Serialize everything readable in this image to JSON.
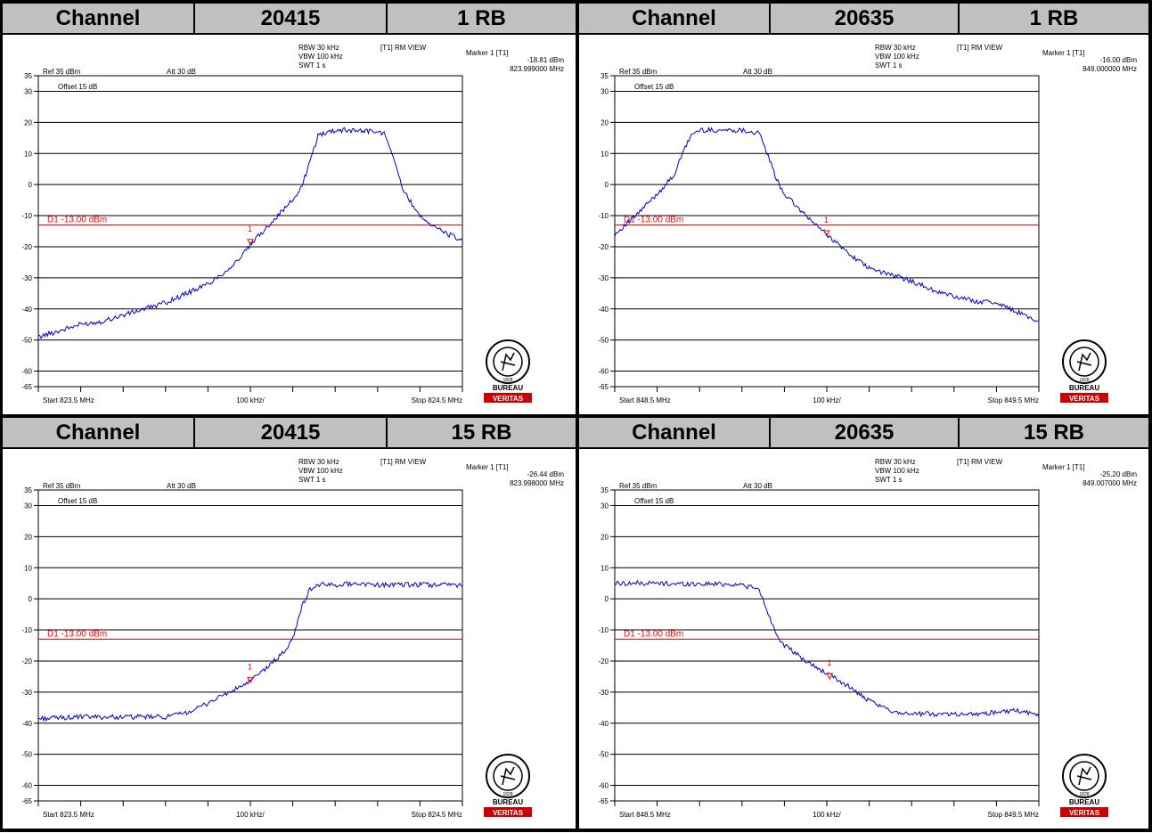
{
  "sections": [
    {
      "header": {
        "label": "Channel",
        "channel": "20415",
        "rb": "1 RB"
      },
      "chart_data": {
        "type": "line",
        "title": "",
        "ref_label": "Ref 35 dBm",
        "att_label": "Att 30 dB",
        "offset_label": "Offset 15 dB",
        "rbw": "RBW 30 kHz",
        "vbw": "VBW 100 kHz",
        "swt": "SWT 1 s",
        "mode": "[T1] RM VIEW",
        "marker_title": "Marker 1 [T1]",
        "marker_level": "-18.81 dBm",
        "marker_freq": "823.999000 MHz",
        "start_label": "Start 823.5 MHz",
        "span_label": "100 kHz/",
        "stop_label": "Stop 824.5 MHz",
        "limit_label": "D1 -13.00 dBm",
        "limit_value": -13,
        "x_range": [
          823.5,
          824.5
        ],
        "ylim": [
          -65,
          35
        ],
        "yticks": [
          35,
          30,
          20,
          10,
          0,
          -10,
          -20,
          -30,
          -40,
          -50,
          -60,
          -65
        ],
        "marker_x": 824.0,
        "marker_y": -18.81,
        "series": [
          {
            "x": [
              823.5,
              823.55,
              823.6,
              823.65,
              823.7,
              823.75,
              823.8,
              823.85,
              823.9,
              823.95,
              823.98,
              824.0,
              824.05,
              824.1,
              824.12,
              824.14,
              824.16,
              824.2,
              824.25,
              824.3,
              824.32,
              824.34,
              824.36,
              824.4,
              824.45,
              824.5
            ],
            "y": [
              -49,
              -47,
              -45,
              -44,
              -42,
              -40,
              -38,
              -35,
              -32,
              -27,
              -23,
              -19.5,
              -12,
              -5,
              -1,
              7,
              16,
              17.5,
              17.5,
              17,
              16,
              8,
              -2,
              -10,
              -15,
              -18
            ]
          }
        ]
      }
    },
    {
      "header": {
        "label": "Channel",
        "channel": "20635",
        "rb": "1 RB"
      },
      "chart_data": {
        "type": "line",
        "title": "",
        "ref_label": "Ref 35 dBm",
        "att_label": "Att 30 dB",
        "offset_label": "Offset 15 dB",
        "rbw": "RBW 30 kHz",
        "vbw": "VBW 100 kHz",
        "swt": "SWT 1 s",
        "mode": "[T1] RM VIEW",
        "marker_title": "Marker 1 [T1]",
        "marker_level": "-16.00 dBm",
        "marker_freq": "849.000000 MHz",
        "start_label": "Start 848.5 MHz",
        "span_label": "100 kHz/",
        "stop_label": "Stop 849.5 MHz",
        "limit_label": "D1 -13.00 dBm",
        "limit_value": -13,
        "x_range": [
          848.5,
          849.5
        ],
        "ylim": [
          -65,
          35
        ],
        "yticks": [
          35,
          30,
          20,
          10,
          0,
          -10,
          -20,
          -30,
          -40,
          -50,
          -60,
          -65
        ],
        "marker_x": 849.0,
        "marker_y": -16.0,
        "series": [
          {
            "x": [
              848.5,
              848.55,
              848.6,
              848.64,
              848.66,
              848.68,
              848.7,
              848.75,
              848.8,
              848.84,
              848.86,
              848.88,
              848.9,
              848.95,
              849.0,
              849.05,
              849.1,
              849.15,
              849.2,
              849.25,
              849.3,
              849.35,
              849.4,
              849.45,
              849.5
            ],
            "y": [
              -16,
              -10,
              -3,
              3,
              10,
              16,
              17.5,
              17.5,
              17.5,
              16.5,
              10,
              2,
              -3,
              -10,
              -16,
              -22,
              -27,
              -29,
              -31,
              -34,
              -36,
              -37.5,
              -38,
              -41,
              -44
            ]
          }
        ]
      }
    },
    {
      "header": {
        "label": "Channel",
        "channel": "20415",
        "rb": "15 RB"
      },
      "chart_data": {
        "type": "line",
        "title": "",
        "ref_label": "Ref 35 dBm",
        "att_label": "Att 30 dB",
        "offset_label": "Offset 15 dB",
        "rbw": "RBW 30 kHz",
        "vbw": "VBW 100 kHz",
        "swt": "SWT 1 s",
        "mode": "[T1] RM VIEW",
        "marker_title": "Marker 1 [T1]",
        "marker_level": "-26.44 dBm",
        "marker_freq": "823.998000 MHz",
        "start_label": "Start 823.5 MHz",
        "span_label": "100 kHz/",
        "stop_label": "Stop 824.5 MHz",
        "limit_label": "D1 -13.00 dBm",
        "limit_value": -13,
        "x_range": [
          823.5,
          824.5
        ],
        "ylim": [
          -65,
          35
        ],
        "yticks": [
          35,
          30,
          20,
          10,
          0,
          -10,
          -20,
          -30,
          -40,
          -50,
          -60,
          -65
        ],
        "marker_x": 824.0,
        "marker_y": -26.44,
        "series": [
          {
            "x": [
              823.5,
              823.6,
              823.7,
              823.8,
              823.84,
              823.88,
              823.92,
              823.96,
              824.0,
              824.04,
              824.08,
              824.1,
              824.12,
              824.14,
              824.16,
              824.2,
              824.25,
              824.3,
              824.35,
              824.4,
              824.45,
              824.5
            ],
            "y": [
              -38.5,
              -38,
              -38,
              -38,
              -37,
              -35,
              -32,
              -29.5,
              -26.5,
              -22,
              -17,
              -13,
              -3,
              3,
              4.5,
              4.5,
              5,
              4.5,
              4.5,
              4.5,
              4.5,
              4.5
            ]
          }
        ]
      }
    },
    {
      "header": {
        "label": "Channel",
        "channel": "20635",
        "rb": "15 RB"
      },
      "chart_data": {
        "type": "line",
        "title": "",
        "ref_label": "Ref 35 dBm",
        "att_label": "Att 30 dB",
        "offset_label": "Offset 15 dB",
        "rbw": "RBW 30 kHz",
        "vbw": "VBW 100 kHz",
        "swt": "SWT 1 s",
        "mode": "[T1] RM VIEW",
        "marker_title": "Marker 1 [T1]",
        "marker_level": "-25.20 dBm",
        "marker_freq": "849.007000 MHz",
        "start_label": "Start 848.5 MHz",
        "span_label": "100 kHz/",
        "stop_label": "Stop 849.5 MHz",
        "limit_label": "D1 -13.00 dBm",
        "limit_value": -13,
        "x_range": [
          848.5,
          849.5
        ],
        "ylim": [
          -65,
          35
        ],
        "yticks": [
          35,
          30,
          20,
          10,
          0,
          -10,
          -20,
          -30,
          -40,
          -50,
          -60,
          -65
        ],
        "marker_x": 849.007,
        "marker_y": -25.2,
        "series": [
          {
            "x": [
              848.5,
              848.55,
              848.6,
              848.65,
              848.7,
              848.75,
              848.8,
              848.84,
              848.86,
              848.88,
              848.9,
              848.95,
              849.0,
              849.05,
              849.1,
              849.15,
              849.2,
              849.25,
              849.3,
              849.35,
              849.4,
              849.45,
              849.5
            ],
            "y": [
              5,
              5,
              5,
              4.8,
              4.8,
              4.8,
              4.5,
              3,
              -4,
              -11,
              -15,
              -20,
              -24,
              -28,
              -33,
              -36,
              -37,
              -37,
              -37,
              -37,
              -36.5,
              -36,
              -37.5
            ]
          }
        ]
      }
    }
  ],
  "logo": {
    "line1": "BUREAU",
    "line2": "VERITAS",
    "ring_text": "BUREAU VERITAS",
    "year": "1828",
    "accent": "#cc0000"
  },
  "colors": {
    "trace": "#0000c8",
    "limit": "#ff0000",
    "marker": "#ff0000",
    "grid": "#000000",
    "header_bg": "#c0c0c0"
  }
}
